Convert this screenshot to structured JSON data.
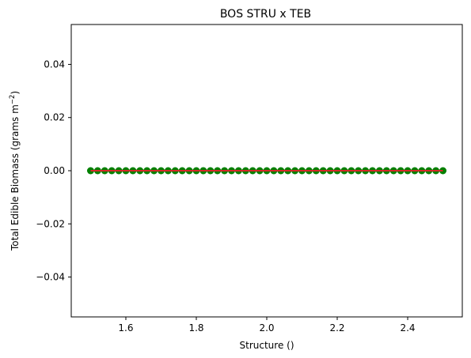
{
  "chart_data": {
    "type": "scatter",
    "title": "BOS STRU x TEB",
    "xlabel": "Structure ()",
    "ylabel_main": "Total Edible Biomass (grams m",
    "ylabel_sup": "−2",
    "ylabel_tail": ")",
    "xlim": [
      1.445,
      2.555
    ],
    "ylim": [
      -0.055,
      0.055
    ],
    "xticks": [
      1.6,
      1.8,
      2.0,
      2.2,
      2.4
    ],
    "xtick_labels": [
      "1.6",
      "1.8",
      "2.0",
      "2.2",
      "2.4"
    ],
    "yticks": [
      0.04,
      0.02,
      0.0,
      -0.02,
      -0.04
    ],
    "ytick_labels": [
      "0.04",
      "0.02",
      "0.00",
      "−0.02",
      "−0.04"
    ],
    "grid": false,
    "series": [
      {
        "kind": "scatter",
        "color": "#008000",
        "x": [
          1.5,
          1.52,
          1.54,
          1.56,
          1.58,
          1.6,
          1.62,
          1.64,
          1.66,
          1.68,
          1.7,
          1.72,
          1.74,
          1.76,
          1.78,
          1.8,
          1.82,
          1.84,
          1.86,
          1.88,
          1.9,
          1.92,
          1.94,
          1.96,
          1.98,
          2.0,
          2.02,
          2.04,
          2.06,
          2.08,
          2.1,
          2.12,
          2.14,
          2.16,
          2.18,
          2.2,
          2.22,
          2.24,
          2.26,
          2.28,
          2.3,
          2.32,
          2.34,
          2.36,
          2.38,
          2.4,
          2.42,
          2.44,
          2.46,
          2.48,
          2.5
        ],
        "y": [
          0,
          0,
          0,
          0,
          0,
          0,
          0,
          0,
          0,
          0,
          0,
          0,
          0,
          0,
          0,
          0,
          0,
          0,
          0,
          0,
          0,
          0,
          0,
          0,
          0,
          0,
          0,
          0,
          0,
          0,
          0,
          0,
          0,
          0,
          0,
          0,
          0,
          0,
          0,
          0,
          0,
          0,
          0,
          0,
          0,
          0,
          0,
          0,
          0,
          0,
          0
        ]
      },
      {
        "kind": "line",
        "color": "#d62728",
        "x": [
          1.5,
          2.5
        ],
        "y": [
          0,
          0
        ]
      }
    ]
  }
}
